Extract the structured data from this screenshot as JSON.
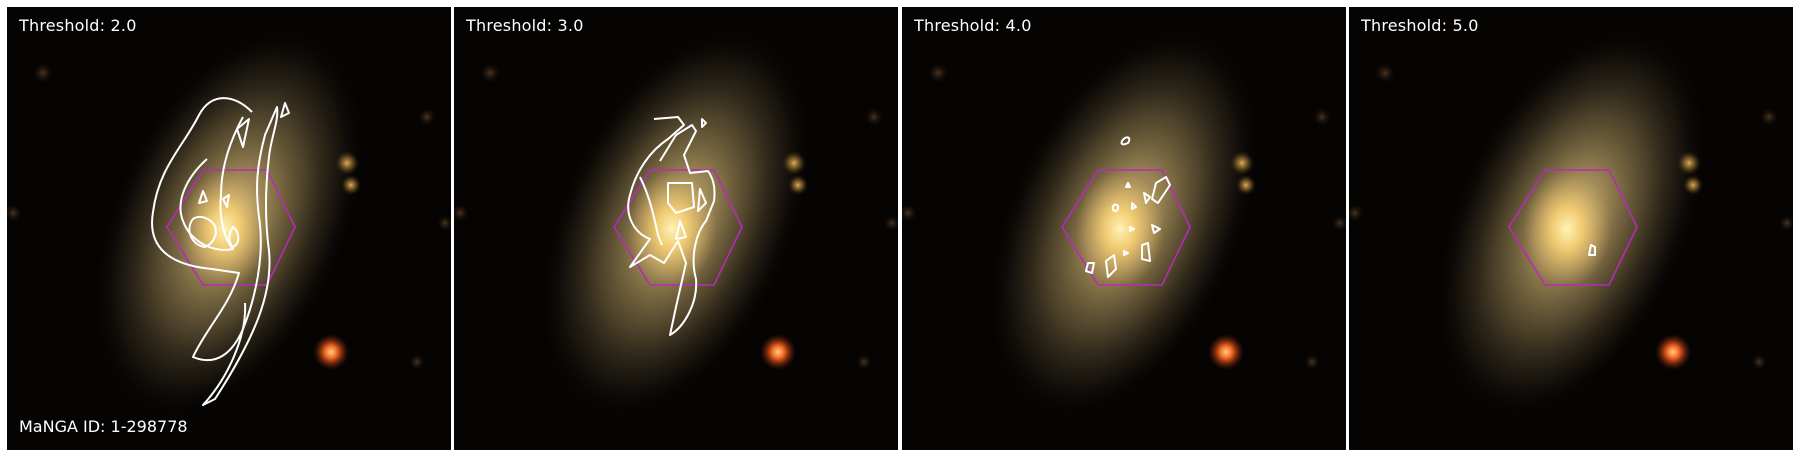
{
  "panels": [
    {
      "threshold_label": "Threshold: 2.0"
    },
    {
      "threshold_label": "Threshold: 3.0"
    },
    {
      "threshold_label": "Threshold: 4.0"
    },
    {
      "threshold_label": "Threshold: 5.0"
    }
  ],
  "galaxy_id_label": "MaNGA ID: 1-298778",
  "colors": {
    "background": "#050403",
    "galaxy_core": "#ffd880",
    "galaxy_halo": "#8a7a52",
    "star_red": "#ff6a22",
    "star_yellow": "#c89a44",
    "hexagon": "#b82ab8",
    "contour": "#ffffff",
    "separator": "#ffffff"
  }
}
